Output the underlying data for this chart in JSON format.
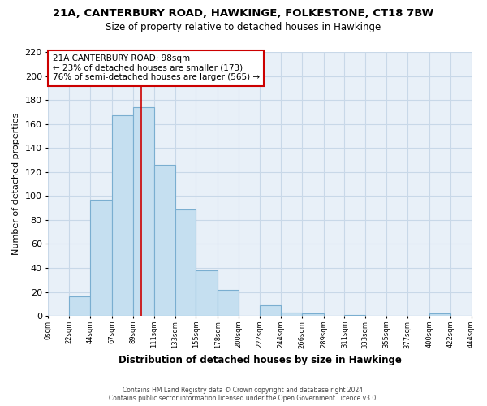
{
  "title": "21A, CANTERBURY ROAD, HAWKINGE, FOLKESTONE, CT18 7BW",
  "subtitle": "Size of property relative to detached houses in Hawkinge",
  "xlabel": "Distribution of detached houses by size in Hawkinge",
  "ylabel": "Number of detached properties",
  "bar_color": "#c5dff0",
  "bar_edge_color": "#7aaed0",
  "bin_edges": [
    0,
    22,
    44,
    67,
    89,
    111,
    133,
    155,
    178,
    200,
    222,
    244,
    266,
    289,
    311,
    333,
    355,
    377,
    400,
    422,
    444
  ],
  "bin_labels": [
    "0sqm",
    "22sqm",
    "44sqm",
    "67sqm",
    "89sqm",
    "111sqm",
    "133sqm",
    "155sqm",
    "178sqm",
    "200sqm",
    "222sqm",
    "244sqm",
    "266sqm",
    "289sqm",
    "311sqm",
    "333sqm",
    "355sqm",
    "377sqm",
    "400sqm",
    "422sqm",
    "444sqm"
  ],
  "counts": [
    0,
    16,
    97,
    167,
    174,
    126,
    89,
    38,
    22,
    0,
    9,
    3,
    2,
    0,
    1,
    0,
    0,
    0,
    2,
    0
  ],
  "ylim": [
    0,
    220
  ],
  "yticks": [
    0,
    20,
    40,
    60,
    80,
    100,
    120,
    140,
    160,
    180,
    200,
    220
  ],
  "property_line_x": 98,
  "annotation_title": "21A CANTERBURY ROAD: 98sqm",
  "annotation_line1": "← 23% of detached houses are smaller (173)",
  "annotation_line2": "76% of semi-detached houses are larger (565) →",
  "annotation_box_color": "#ffffff",
  "annotation_box_edge": "#cc0000",
  "property_line_color": "#cc0000",
  "grid_color": "#c8d8e8",
  "plot_bg_color": "#e8f0f8",
  "footer1": "Contains HM Land Registry data © Crown copyright and database right 2024.",
  "footer2": "Contains public sector information licensed under the Open Government Licence v3.0."
}
